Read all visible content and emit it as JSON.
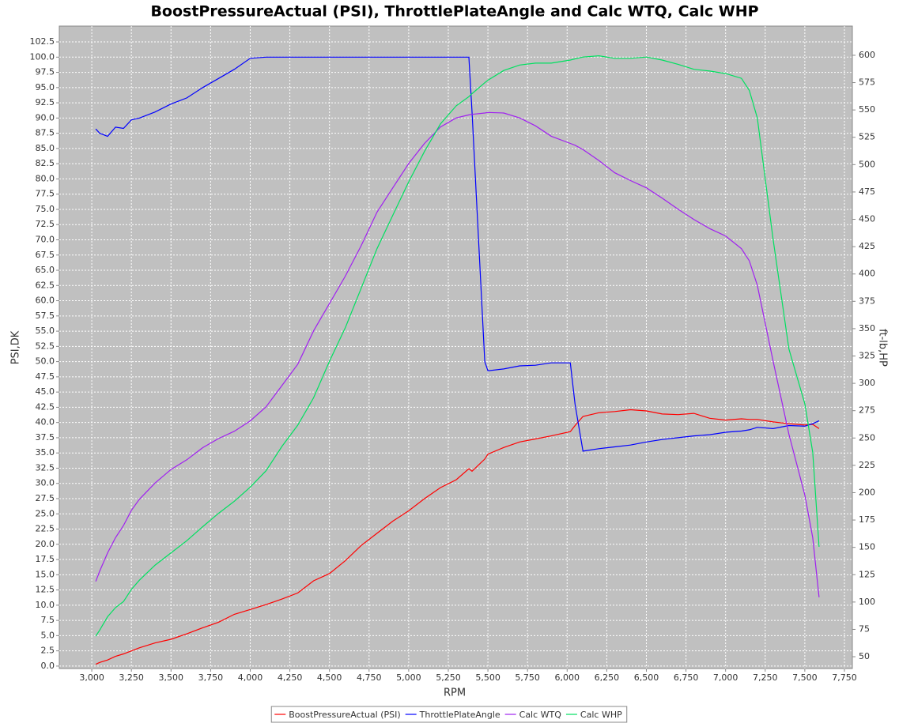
{
  "chart_data": {
    "type": "line",
    "title": "BoostPressureActual (PSI), ThrottlePlateAngle and Calc WTQ, Calc WHP",
    "x_label": "RPM",
    "y_label": "PSI,DK",
    "y2_label": "ft-lb,HP",
    "x": [
      3025,
      3050,
      3100,
      3150,
      3200,
      3250,
      3300,
      3400,
      3500,
      3600,
      3700,
      3800,
      3900,
      4000,
      4100,
      4200,
      4300,
      4400,
      4500,
      4600,
      4700,
      4800,
      4900,
      5000,
      5100,
      5200,
      5300,
      5380,
      5400,
      5480,
      5500,
      5600,
      5700,
      5800,
      5900,
      6020,
      6050,
      6100,
      6200,
      6300,
      6400,
      6500,
      6600,
      6700,
      6800,
      6900,
      7000,
      7100,
      7150,
      7200,
      7300,
      7400,
      7500,
      7550,
      7590
    ],
    "series": [
      {
        "name": "BoostPressureActual (PSI)",
        "color": "#ff0000",
        "values": [
          0.3,
          0.6,
          1.0,
          1.6,
          2.0,
          2.5,
          3.0,
          3.8,
          4.4,
          5.3,
          6.3,
          7.2,
          8.5,
          9.3,
          10.1,
          11.0,
          12.0,
          14.0,
          15.2,
          17.3,
          19.8,
          21.8,
          23.8,
          25.5,
          27.5,
          29.3,
          30.6,
          32.4,
          32.0,
          34.0,
          34.8,
          35.9,
          36.8,
          37.3,
          37.8,
          38.5,
          39.5,
          41.0,
          41.6,
          41.8,
          42.1,
          41.9,
          41.4,
          41.3,
          41.5,
          40.7,
          40.4,
          40.6,
          40.5,
          40.5,
          40.1,
          39.8,
          39.6,
          39.7,
          39.0
        ]
      },
      {
        "name": "ThrottlePlateAngle",
        "color": "#0000ff",
        "values": [
          88.2,
          87.5,
          87.0,
          88.5,
          88.3,
          89.7,
          90.0,
          91.0,
          92.3,
          93.3,
          95.0,
          96.5,
          98.0,
          99.8,
          100,
          100,
          100,
          100,
          100,
          100,
          100,
          100,
          100,
          100,
          100,
          100,
          100,
          100,
          91,
          50,
          48.5,
          48.8,
          49.3,
          49.4,
          49.8,
          49.8,
          43,
          35.3,
          35.7,
          36.0,
          36.3,
          36.8,
          37.2,
          37.5,
          37.8,
          38.0,
          38.4,
          38.6,
          38.8,
          39.2,
          39.0,
          39.5,
          39.4,
          39.8,
          40.3
        ]
      },
      {
        "name": "Calc WTQ",
        "color": "#a020f0",
        "axis": "y2",
        "values": [
          118.8,
          128.3,
          145,
          158.9,
          170,
          183.9,
          193.9,
          208.9,
          221.2,
          230.1,
          241.2,
          249.5,
          256.2,
          265.7,
          278.5,
          298,
          317.4,
          348,
          373,
          398,
          425.9,
          456.5,
          478.8,
          501,
          519.4,
          534.4,
          542.7,
          545.5,
          546,
          547.2,
          547.7,
          547.2,
          542.7,
          535.5,
          526,
          519.4,
          517.7,
          513.8,
          503.8,
          492.6,
          485.4,
          478.8,
          469.3,
          459.3,
          449.8,
          441.5,
          434.8,
          423.1,
          412,
          389.7,
          320.2,
          253.4,
          197.8,
          158.9,
          104.4
        ]
      },
      {
        "name": "Calc WHP",
        "color": "#00e060",
        "axis": "y2",
        "values": [
          68.8,
          74.3,
          86.6,
          94.9,
          100.5,
          111.6,
          119.9,
          133.8,
          145,
          156.1,
          168.9,
          181.1,
          192.2,
          205.1,
          220.1,
          242.3,
          261.8,
          286.8,
          320.2,
          350.8,
          387,
          423.1,
          453.7,
          484.3,
          512.1,
          537.2,
          553.8,
          562.2,
          564.9,
          574.9,
          577.2,
          586.1,
          591.1,
          592.8,
          592.8,
          595.6,
          596.7,
          598.4,
          599.5,
          597.2,
          597.2,
          598.4,
          595.6,
          591.7,
          587.2,
          585.6,
          583.3,
          578.9,
          567.8,
          542.7,
          431.5,
          331.3,
          281.3,
          236.8,
          150.5
        ]
      }
    ],
    "xlim": [
      2795,
      7800
    ],
    "xticks": [
      {
        "value": 3000,
        "label": "3,000"
      },
      {
        "value": 3250,
        "label": "3,250"
      },
      {
        "value": 3500,
        "label": "3,500"
      },
      {
        "value": 3750,
        "label": "3,750"
      },
      {
        "value": 4000,
        "label": "4,000"
      },
      {
        "value": 4250,
        "label": "4,250"
      },
      {
        "value": 4500,
        "label": "4,500"
      },
      {
        "value": 4750,
        "label": "4,750"
      },
      {
        "value": 5000,
        "label": "5,000"
      },
      {
        "value": 5250,
        "label": "5,250"
      },
      {
        "value": 5500,
        "label": "5,500"
      },
      {
        "value": 5750,
        "label": "5,750"
      },
      {
        "value": 6000,
        "label": "6,000"
      },
      {
        "value": 6250,
        "label": "6,250"
      },
      {
        "value": 6500,
        "label": "6,500"
      },
      {
        "value": 6750,
        "label": "6,750"
      },
      {
        "value": 7000,
        "label": "7,000"
      },
      {
        "value": 7250,
        "label": "7,250"
      },
      {
        "value": 7500,
        "label": "7,500"
      },
      {
        "value": 7750,
        "label": "7,750"
      }
    ],
    "ylim": [
      -0.4,
      105.1
    ],
    "yticks": [
      {
        "value": 0,
        "label": "0.0"
      },
      2.5,
      {
        "value": 5,
        "label": "5.0"
      },
      7.5,
      {
        "value": 10,
        "label": "10.0"
      },
      12.5,
      {
        "value": 15,
        "label": "15.0"
      },
      17.5,
      {
        "value": 20,
        "label": "20.0"
      },
      22.5,
      {
        "value": 25,
        "label": "25.0"
      },
      27.5,
      {
        "value": 30,
        "label": "30.0"
      },
      32.5,
      {
        "value": 35,
        "label": "35.0"
      },
      37.5,
      {
        "value": 40,
        "label": "40.0"
      },
      42.5,
      {
        "value": 45,
        "label": "45.0"
      },
      47.5,
      {
        "value": 50,
        "label": "50.0"
      },
      52.5,
      {
        "value": 55,
        "label": "55.0"
      },
      57.5,
      {
        "value": 60,
        "label": "60.0"
      },
      62.5,
      {
        "value": 65,
        "label": "65.0"
      },
      67.5,
      {
        "value": 70,
        "label": "70.0"
      },
      72.5,
      {
        "value": 75,
        "label": "75.0"
      },
      77.5,
      {
        "value": 80,
        "label": "80.0"
      },
      82.5,
      {
        "value": 85,
        "label": "85.0"
      },
      87.5,
      {
        "value": 90,
        "label": "90.0"
      },
      92.5,
      {
        "value": 95,
        "label": "95.0"
      },
      97.5,
      {
        "value": 100,
        "label": "100.0"
      },
      102.5
    ],
    "y2lim": [
      39.2,
      626.7
    ],
    "y2ticks": [
      50,
      75,
      100,
      125,
      150,
      175,
      200,
      225,
      250,
      275,
      300,
      325,
      350,
      375,
      400,
      425,
      450,
      475,
      500,
      525,
      550,
      575,
      600
    ],
    "grid": true,
    "legend": "bottom"
  }
}
